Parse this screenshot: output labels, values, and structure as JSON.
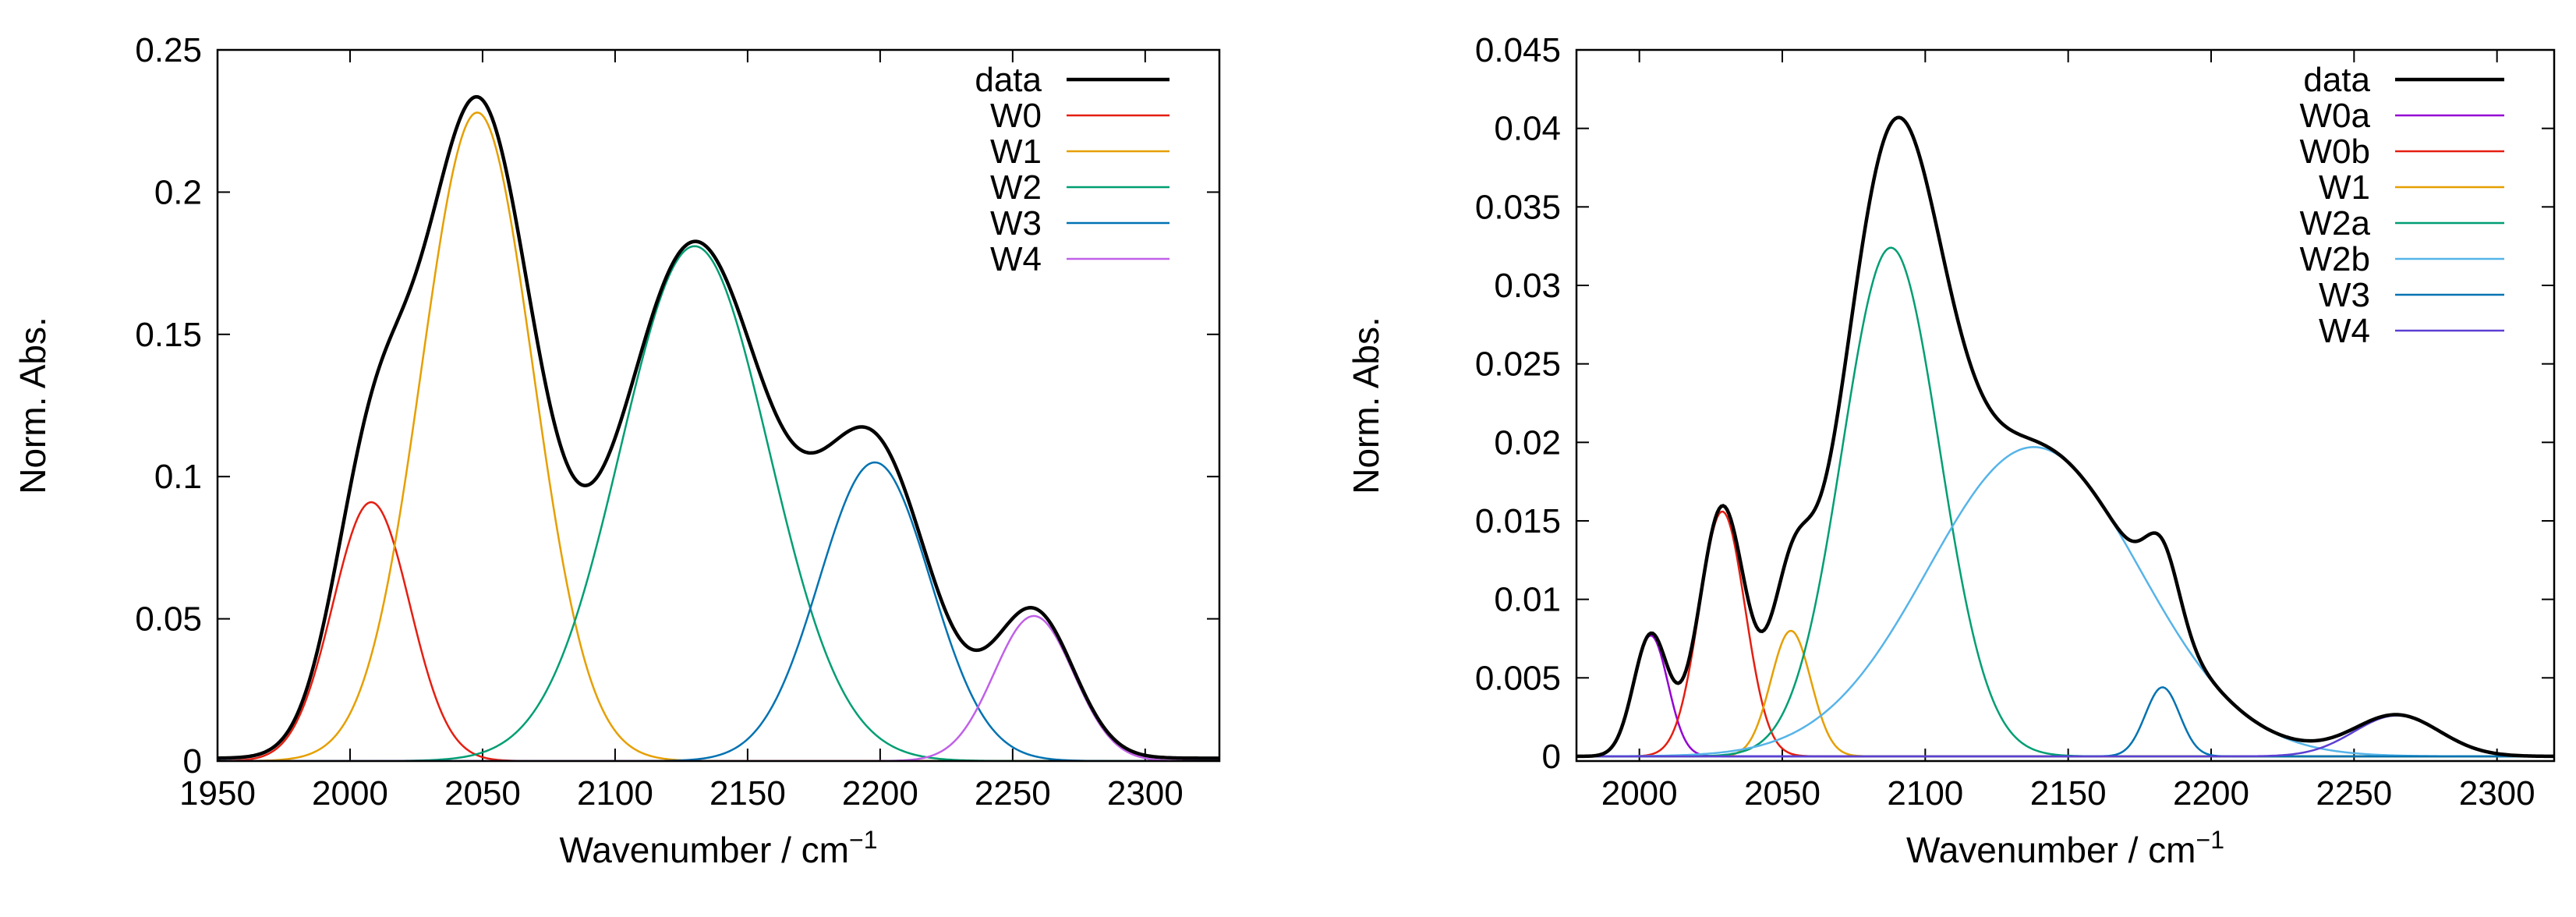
{
  "chart_data": [
    {
      "type": "line",
      "xlabel": "Wavenumber / cm",
      "xlabel_sup": "−1",
      "ylabel": "Norm. Abs.",
      "xlim": [
        1950,
        2328
      ],
      "ylim": [
        0,
        0.25
      ],
      "xticks": [
        1950,
        2000,
        2050,
        2100,
        2150,
        2200,
        2250,
        2300
      ],
      "yticks": [
        0,
        0.05,
        0.1,
        0.15,
        0.2,
        0.25
      ],
      "xtick_labels": [
        "1950",
        "2000",
        "2050",
        "2100",
        "2150",
        "2200",
        "2250",
        "2300"
      ],
      "ytick_labels": [
        "0",
        "0.05",
        "0.1",
        "0.15",
        "0.2",
        "0.25"
      ],
      "legend_position": "top-right",
      "baseline": 0.001,
      "series": [
        {
          "name": "data",
          "color": "#000000",
          "kind": "sum"
        },
        {
          "name": "W0",
          "color": "#e51e10",
          "amp": 0.091,
          "center": 2008,
          "sigma": 14.5
        },
        {
          "name": "W1",
          "color": "#e69f00",
          "amp": 0.228,
          "center": 2048,
          "sigma": 21
        },
        {
          "name": "W2",
          "color": "#009e73",
          "amp": 0.181,
          "center": 2130,
          "sigma": 28
        },
        {
          "name": "W3",
          "color": "#0072b2",
          "amp": 0.105,
          "center": 2198,
          "sigma": 21
        },
        {
          "name": "W4",
          "color": "#c060e8",
          "amp": 0.051,
          "center": 2258,
          "sigma": 15
        }
      ]
    },
    {
      "type": "line",
      "xlabel": "Wavenumber / cm",
      "xlabel_sup": "−1",
      "ylabel": "Norm. Abs.",
      "xlim": [
        1978,
        2320
      ],
      "ylim": [
        -0.0003,
        0.045
      ],
      "xticks": [
        2000,
        2050,
        2100,
        2150,
        2200,
        2250,
        2300
      ],
      "yticks": [
        0,
        0.005,
        0.01,
        0.015,
        0.02,
        0.025,
        0.03,
        0.035,
        0.04,
        0.045
      ],
      "xtick_labels": [
        "2000",
        "2050",
        "2100",
        "2150",
        "2200",
        "2250",
        "2300"
      ],
      "ytick_labels": [
        "0",
        "0.005",
        "0.01",
        "0.015",
        "0.02",
        "0.025",
        "0.03",
        "0.035",
        "0.04",
        "0.045"
      ],
      "legend_position": "top-right",
      "baseline": 0,
      "series": [
        {
          "name": "data",
          "color": "#000000",
          "kind": "sum"
        },
        {
          "name": "W0a",
          "color": "#9400d3",
          "amp": 0.0077,
          "center": 2004,
          "sigma": 6
        },
        {
          "name": "W0b",
          "color": "#e51e10",
          "amp": 0.0156,
          "center": 2029,
          "sigma": 8
        },
        {
          "name": "W1",
          "color": "#e69f00",
          "amp": 0.008,
          "center": 2053,
          "sigma": 7
        },
        {
          "name": "W2a",
          "color": "#009e73",
          "amp": 0.0324,
          "center": 2088,
          "sigma": 17
        },
        {
          "name": "W2b",
          "color": "#56b4e9",
          "amp": 0.0197,
          "center": 2138,
          "sigma": 37
        },
        {
          "name": "W3",
          "color": "#0072b2",
          "amp": 0.0044,
          "center": 2183,
          "sigma": 6
        },
        {
          "name": "W4",
          "color": "#5d3fd3",
          "amp": 0.0026,
          "center": 2265,
          "sigma": 15
        }
      ]
    }
  ]
}
